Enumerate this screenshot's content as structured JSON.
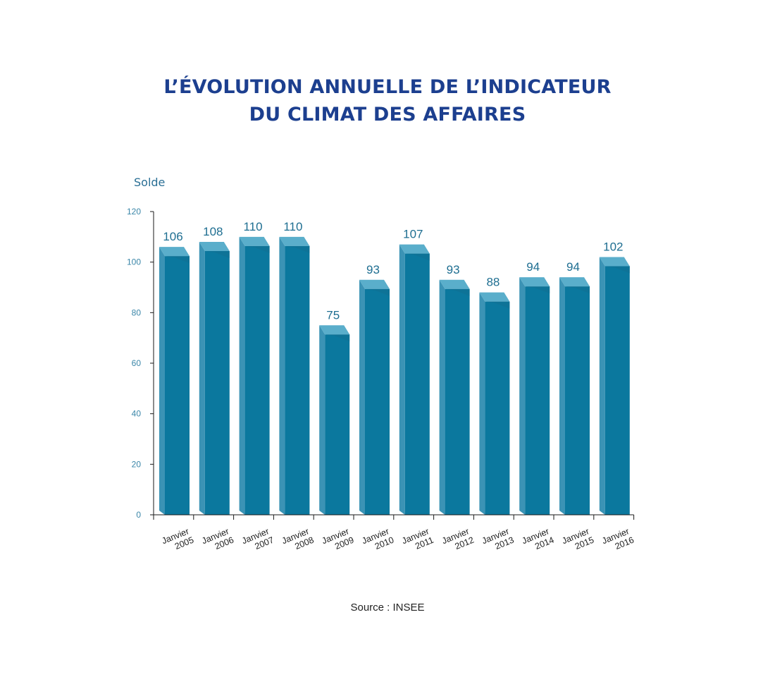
{
  "title_line1": "L’ÉVOLUTION ANNUELLE DE L’INDICATEUR",
  "title_line2": "DU CLIMAT DES AFFAIRES",
  "source": "Source : INSEE",
  "colors": {
    "title": "#1c3f8f",
    "bar_front": "#0b789e",
    "bar_side": "#3b93b5",
    "bar_top": "#5aaecb",
    "value_label": "#1e6e91",
    "axis_tick_label": "#3a86a8"
  },
  "chart_data": {
    "type": "bar",
    "title": "L’ÉVOLUTION ANNUELLE DE L’INDICATEUR DU CLIMAT DES AFFAIRES",
    "ylabel": "Solde",
    "xlabel": "",
    "ylim": [
      0,
      120
    ],
    "yticks": [
      0,
      20,
      40,
      60,
      80,
      100,
      120
    ],
    "categories": [
      [
        "Janvier",
        "2005"
      ],
      [
        "Janvier",
        "2006"
      ],
      [
        "Janvier",
        "2007"
      ],
      [
        "Janvier",
        "2008"
      ],
      [
        "Janvier",
        "2009"
      ],
      [
        "Janvier",
        "2010"
      ],
      [
        "Janvier",
        "2011"
      ],
      [
        "Janvier",
        "2012"
      ],
      [
        "Janvier",
        "2013"
      ],
      [
        "Janvier",
        "2014"
      ],
      [
        "Janvier",
        "2015"
      ],
      [
        "Janvier",
        "2016"
      ]
    ],
    "values": [
      106,
      108,
      110,
      110,
      75,
      93,
      107,
      93,
      88,
      94,
      94,
      102
    ],
    "value_labels_shown": true,
    "grid": false,
    "legend": "none"
  }
}
